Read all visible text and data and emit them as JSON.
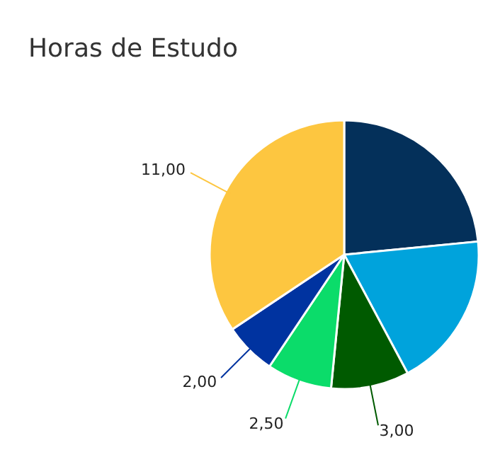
{
  "chart_data": {
    "type": "pie",
    "title": "Horas de Estudo",
    "categories": [
      null,
      null,
      null,
      null,
      null,
      null
    ],
    "values": [
      7.5,
      6,
      3,
      2.5,
      2,
      11
    ],
    "colors": [
      "#04305a",
      "#00a3dc",
      "#005a00",
      "#0bdc6a",
      "#0033a0",
      "#fdc640"
    ],
    "value_labels": [
      null,
      null,
      "3,00",
      "2,50",
      "2,00",
      "11,00"
    ],
    "legend": false
  }
}
